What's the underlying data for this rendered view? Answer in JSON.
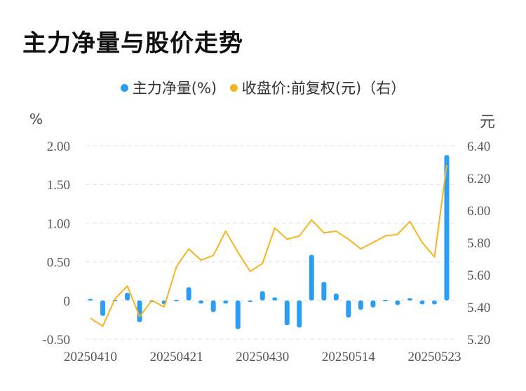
{
  "title": "主力净量与股价走势",
  "legend": {
    "left": {
      "label": "主力净量(%)",
      "color": "#2a9df4"
    },
    "right": {
      "label": "收盘价:前复权(元)（右）",
      "color": "#f5b51e"
    }
  },
  "units": {
    "left": "%",
    "right": "元"
  },
  "chart_data": {
    "type": "bar+line",
    "title": "主力净量与股价走势",
    "ylim_left": [
      -0.5,
      2.0
    ],
    "yticks_left": [
      -0.5,
      0,
      0.5,
      1.0,
      1.5,
      2.0
    ],
    "yticks_left_labels": [
      "-0.50",
      "0",
      "0.50",
      "1.00",
      "1.50",
      "2.00"
    ],
    "ylim_right": [
      5.2,
      6.4
    ],
    "yticks_right": [
      5.2,
      5.4,
      5.6,
      5.8,
      6.0,
      6.2,
      6.4
    ],
    "yticks_right_labels": [
      "5.20",
      "5.40",
      "5.60",
      "5.80",
      "6.00",
      "6.20",
      "6.40"
    ],
    "x_tick_labels": [
      {
        "index": 0,
        "label": "20250410"
      },
      {
        "index": 7,
        "label": "20250421"
      },
      {
        "index": 14,
        "label": "20250430"
      },
      {
        "index": 21,
        "label": "20250514"
      },
      {
        "index": 28,
        "label": "20250523"
      }
    ],
    "grid": true,
    "series": [
      {
        "name": "主力净量(%)",
        "kind": "bar",
        "axis": "left",
        "color": "#2a9df4",
        "values": [
          0.02,
          -0.2,
          -0.01,
          0.1,
          -0.28,
          -0.02,
          -0.05,
          0.0,
          0.17,
          -0.04,
          -0.15,
          -0.04,
          -0.37,
          -0.02,
          0.12,
          0.04,
          -0.32,
          -0.35,
          0.59,
          0.24,
          0.09,
          -0.22,
          -0.12,
          -0.09,
          -0.01,
          -0.06,
          0.03,
          -0.05,
          -0.05,
          1.88
        ]
      },
      {
        "name": "收盘价:前复权(元)（右）",
        "kind": "line",
        "axis": "right",
        "color": "#f5b51e",
        "values": [
          5.33,
          5.28,
          5.45,
          5.53,
          5.34,
          5.44,
          5.4,
          5.65,
          5.76,
          5.69,
          5.72,
          5.87,
          5.74,
          5.62,
          5.67,
          5.89,
          5.82,
          5.84,
          5.94,
          5.86,
          5.87,
          5.82,
          5.76,
          5.8,
          5.84,
          5.85,
          5.93,
          5.8,
          5.71,
          6.28
        ]
      }
    ]
  }
}
